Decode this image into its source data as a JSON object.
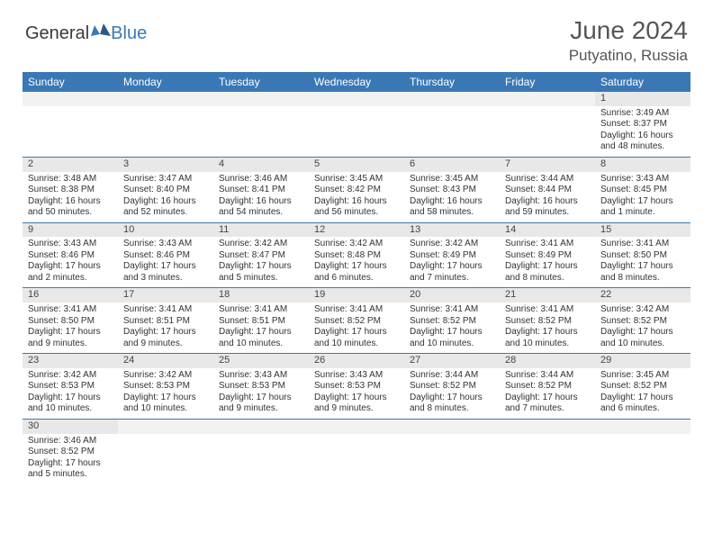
{
  "logo": {
    "text1": "General",
    "text2": "Blue"
  },
  "title": "June 2024",
  "location": "Putyatino, Russia",
  "colors": {
    "header_bg": "#3a78b5",
    "header_text": "#ffffff",
    "daynum_bg": "#e8e8e8",
    "border": "#3a78b5",
    "title_color": "#555555",
    "body_text": "#333333"
  },
  "day_names": [
    "Sunday",
    "Monday",
    "Tuesday",
    "Wednesday",
    "Thursday",
    "Friday",
    "Saturday"
  ],
  "weeks": [
    [
      null,
      null,
      null,
      null,
      null,
      null,
      {
        "n": "1",
        "sr": "Sunrise: 3:49 AM",
        "ss": "Sunset: 8:37 PM",
        "dl1": "Daylight: 16 hours",
        "dl2": "and 48 minutes."
      }
    ],
    [
      {
        "n": "2",
        "sr": "Sunrise: 3:48 AM",
        "ss": "Sunset: 8:38 PM",
        "dl1": "Daylight: 16 hours",
        "dl2": "and 50 minutes."
      },
      {
        "n": "3",
        "sr": "Sunrise: 3:47 AM",
        "ss": "Sunset: 8:40 PM",
        "dl1": "Daylight: 16 hours",
        "dl2": "and 52 minutes."
      },
      {
        "n": "4",
        "sr": "Sunrise: 3:46 AM",
        "ss": "Sunset: 8:41 PM",
        "dl1": "Daylight: 16 hours",
        "dl2": "and 54 minutes."
      },
      {
        "n": "5",
        "sr": "Sunrise: 3:45 AM",
        "ss": "Sunset: 8:42 PM",
        "dl1": "Daylight: 16 hours",
        "dl2": "and 56 minutes."
      },
      {
        "n": "6",
        "sr": "Sunrise: 3:45 AM",
        "ss": "Sunset: 8:43 PM",
        "dl1": "Daylight: 16 hours",
        "dl2": "and 58 minutes."
      },
      {
        "n": "7",
        "sr": "Sunrise: 3:44 AM",
        "ss": "Sunset: 8:44 PM",
        "dl1": "Daylight: 16 hours",
        "dl2": "and 59 minutes."
      },
      {
        "n": "8",
        "sr": "Sunrise: 3:43 AM",
        "ss": "Sunset: 8:45 PM",
        "dl1": "Daylight: 17 hours",
        "dl2": "and 1 minute."
      }
    ],
    [
      {
        "n": "9",
        "sr": "Sunrise: 3:43 AM",
        "ss": "Sunset: 8:46 PM",
        "dl1": "Daylight: 17 hours",
        "dl2": "and 2 minutes."
      },
      {
        "n": "10",
        "sr": "Sunrise: 3:43 AM",
        "ss": "Sunset: 8:46 PM",
        "dl1": "Daylight: 17 hours",
        "dl2": "and 3 minutes."
      },
      {
        "n": "11",
        "sr": "Sunrise: 3:42 AM",
        "ss": "Sunset: 8:47 PM",
        "dl1": "Daylight: 17 hours",
        "dl2": "and 5 minutes."
      },
      {
        "n": "12",
        "sr": "Sunrise: 3:42 AM",
        "ss": "Sunset: 8:48 PM",
        "dl1": "Daylight: 17 hours",
        "dl2": "and 6 minutes."
      },
      {
        "n": "13",
        "sr": "Sunrise: 3:42 AM",
        "ss": "Sunset: 8:49 PM",
        "dl1": "Daylight: 17 hours",
        "dl2": "and 7 minutes."
      },
      {
        "n": "14",
        "sr": "Sunrise: 3:41 AM",
        "ss": "Sunset: 8:49 PM",
        "dl1": "Daylight: 17 hours",
        "dl2": "and 8 minutes."
      },
      {
        "n": "15",
        "sr": "Sunrise: 3:41 AM",
        "ss": "Sunset: 8:50 PM",
        "dl1": "Daylight: 17 hours",
        "dl2": "and 8 minutes."
      }
    ],
    [
      {
        "n": "16",
        "sr": "Sunrise: 3:41 AM",
        "ss": "Sunset: 8:50 PM",
        "dl1": "Daylight: 17 hours",
        "dl2": "and 9 minutes."
      },
      {
        "n": "17",
        "sr": "Sunrise: 3:41 AM",
        "ss": "Sunset: 8:51 PM",
        "dl1": "Daylight: 17 hours",
        "dl2": "and 9 minutes."
      },
      {
        "n": "18",
        "sr": "Sunrise: 3:41 AM",
        "ss": "Sunset: 8:51 PM",
        "dl1": "Daylight: 17 hours",
        "dl2": "and 10 minutes."
      },
      {
        "n": "19",
        "sr": "Sunrise: 3:41 AM",
        "ss": "Sunset: 8:52 PM",
        "dl1": "Daylight: 17 hours",
        "dl2": "and 10 minutes."
      },
      {
        "n": "20",
        "sr": "Sunrise: 3:41 AM",
        "ss": "Sunset: 8:52 PM",
        "dl1": "Daylight: 17 hours",
        "dl2": "and 10 minutes."
      },
      {
        "n": "21",
        "sr": "Sunrise: 3:41 AM",
        "ss": "Sunset: 8:52 PM",
        "dl1": "Daylight: 17 hours",
        "dl2": "and 10 minutes."
      },
      {
        "n": "22",
        "sr": "Sunrise: 3:42 AM",
        "ss": "Sunset: 8:52 PM",
        "dl1": "Daylight: 17 hours",
        "dl2": "and 10 minutes."
      }
    ],
    [
      {
        "n": "23",
        "sr": "Sunrise: 3:42 AM",
        "ss": "Sunset: 8:53 PM",
        "dl1": "Daylight: 17 hours",
        "dl2": "and 10 minutes."
      },
      {
        "n": "24",
        "sr": "Sunrise: 3:42 AM",
        "ss": "Sunset: 8:53 PM",
        "dl1": "Daylight: 17 hours",
        "dl2": "and 10 minutes."
      },
      {
        "n": "25",
        "sr": "Sunrise: 3:43 AM",
        "ss": "Sunset: 8:53 PM",
        "dl1": "Daylight: 17 hours",
        "dl2": "and 9 minutes."
      },
      {
        "n": "26",
        "sr": "Sunrise: 3:43 AM",
        "ss": "Sunset: 8:53 PM",
        "dl1": "Daylight: 17 hours",
        "dl2": "and 9 minutes."
      },
      {
        "n": "27",
        "sr": "Sunrise: 3:44 AM",
        "ss": "Sunset: 8:52 PM",
        "dl1": "Daylight: 17 hours",
        "dl2": "and 8 minutes."
      },
      {
        "n": "28",
        "sr": "Sunrise: 3:44 AM",
        "ss": "Sunset: 8:52 PM",
        "dl1": "Daylight: 17 hours",
        "dl2": "and 7 minutes."
      },
      {
        "n": "29",
        "sr": "Sunrise: 3:45 AM",
        "ss": "Sunset: 8:52 PM",
        "dl1": "Daylight: 17 hours",
        "dl2": "and 6 minutes."
      }
    ],
    [
      {
        "n": "30",
        "sr": "Sunrise: 3:46 AM",
        "ss": "Sunset: 8:52 PM",
        "dl1": "Daylight: 17 hours",
        "dl2": "and 5 minutes."
      },
      null,
      null,
      null,
      null,
      null,
      null
    ]
  ]
}
